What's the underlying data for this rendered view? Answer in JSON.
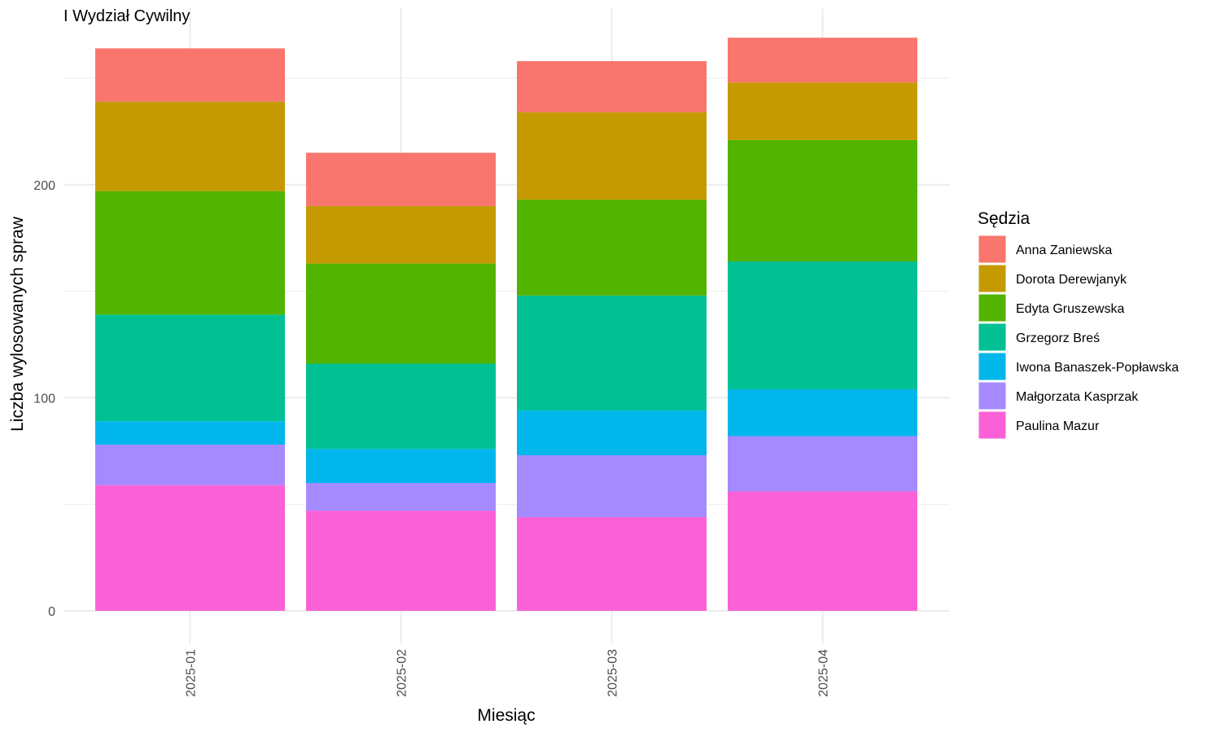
{
  "chart_data": {
    "type": "bar",
    "stacked": true,
    "title": "I Wydział Cywilny",
    "xlabel": "Miesiąc",
    "ylabel": "Liczba wylosowanych spraw",
    "categories": [
      "2025-01",
      "2025-02",
      "2025-03",
      "2025-04"
    ],
    "ylim": [
      0,
      280
    ],
    "yticks": [
      0,
      100,
      200
    ],
    "grid": true,
    "legend_title": "Sędzia",
    "legend_position": "right",
    "series": [
      {
        "name": "Anna Zaniewska",
        "color": "#F8766D",
        "values": [
          25,
          25,
          24,
          21
        ]
      },
      {
        "name": "Dorota Derewjanyk",
        "color": "#C49A00",
        "values": [
          42,
          27,
          41,
          27
        ]
      },
      {
        "name": "Edyta Gruszewska",
        "color": "#53B400",
        "values": [
          58,
          47,
          45,
          57
        ]
      },
      {
        "name": "Grzegorz Breś",
        "color": "#00C094",
        "values": [
          50,
          40,
          54,
          60
        ]
      },
      {
        "name": "Iwona Banaszek-Popławska",
        "color": "#00B6EB",
        "values": [
          11,
          16,
          21,
          22
        ]
      },
      {
        "name": "Małgorzata Kasprzak",
        "color": "#A58AFF",
        "values": [
          19,
          13,
          29,
          26
        ]
      },
      {
        "name": "Paulina Mazur",
        "color": "#FB61D7",
        "values": [
          59,
          47,
          44,
          56
        ]
      }
    ]
  }
}
